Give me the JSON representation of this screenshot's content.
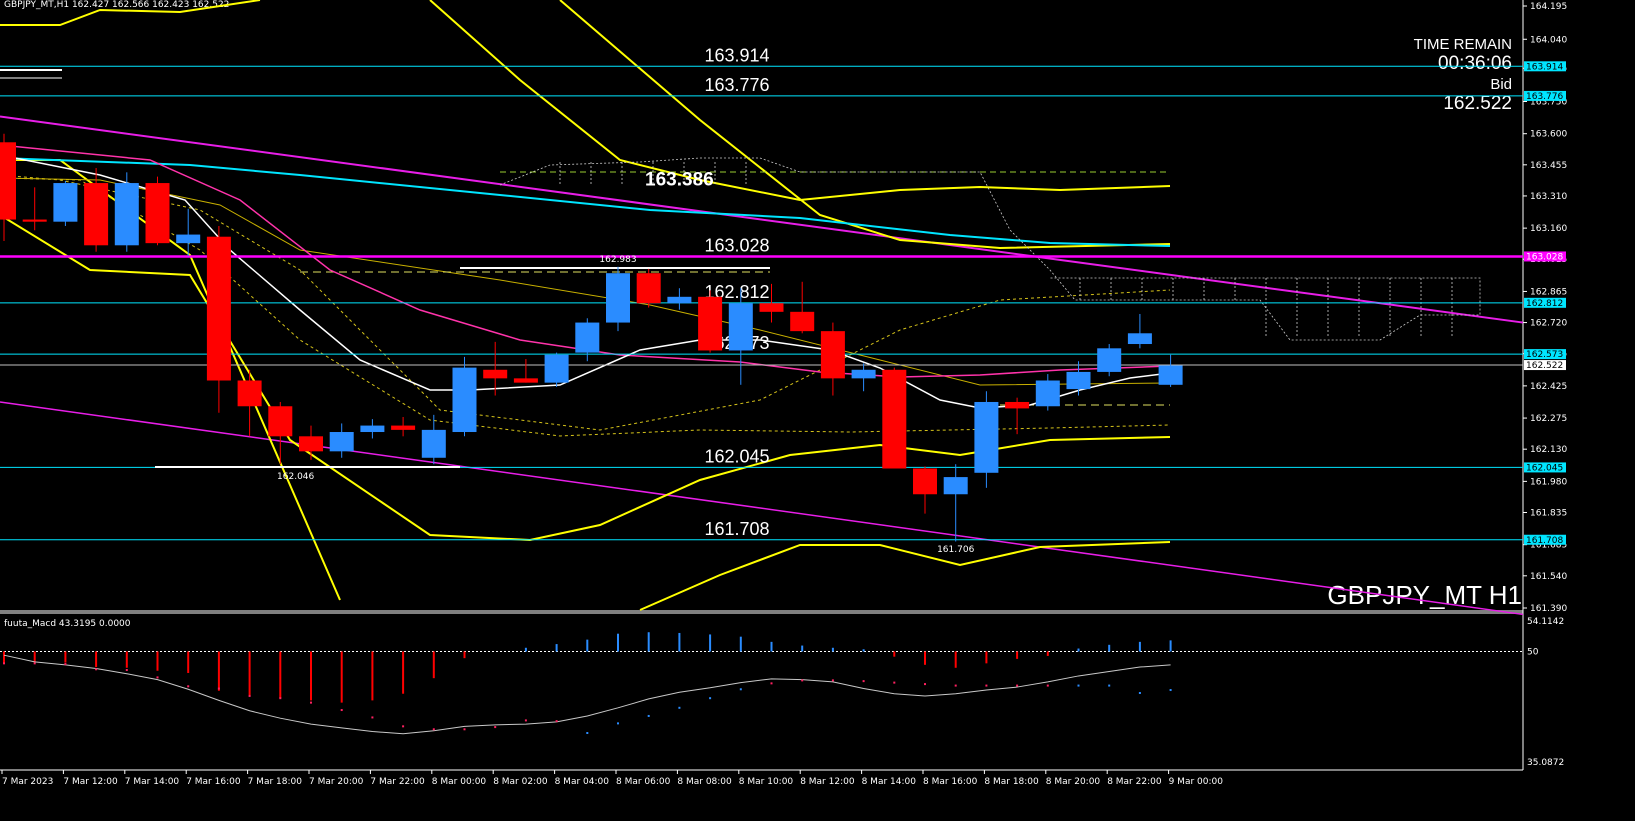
{
  "header": {
    "symbol_info": "GBPJPY_MT,H1",
    "ohlc": "162.427 162.566 162.423 162.522"
  },
  "info_panel": {
    "time_remain_label": "TIME REMAIN",
    "time_remain": "00:36:06",
    "bid_label": "Bid",
    "bid_value": "162.522"
  },
  "watermark": "GBPJPY_MT H1",
  "chart_data": [
    {
      "type": "candlestick",
      "title": "GBPJPY_MT,H1",
      "ylim": [
        161.39,
        164.195
      ],
      "y_ticks": [
        "164.195",
        "164.040",
        "163.905",
        "163.750",
        "163.600",
        "163.455",
        "163.310",
        "163.160",
        "163.015",
        "162.865",
        "162.720",
        "162.575",
        "162.425",
        "162.275",
        "162.130",
        "161.980",
        "161.835",
        "161.685",
        "161.540",
        "161.390"
      ],
      "x_ticks": [
        "7 Mar 2023",
        "7 Mar 12:00",
        "7 Mar 14:00",
        "7 Mar 16:00",
        "7 Mar 18:00",
        "7 Mar 20:00",
        "7 Mar 22:00",
        "8 Mar 00:00",
        "8 Mar 02:00",
        "8 Mar 04:00",
        "8 Mar 06:00",
        "8 Mar 08:00",
        "8 Mar 10:00",
        "8 Mar 12:00",
        "8 Mar 14:00",
        "8 Mar 16:00",
        "8 Mar 18:00",
        "8 Mar 20:00",
        "8 Mar 22:00",
        "9 Mar 00:00"
      ],
      "candles": [
        [
          163.56,
          163.6,
          163.1,
          163.2
        ],
        [
          163.2,
          163.35,
          163.15,
          163.19
        ],
        [
          163.19,
          163.38,
          163.17,
          163.37
        ],
        [
          163.37,
          163.44,
          163.05,
          163.08
        ],
        [
          163.08,
          163.42,
          163.05,
          163.37
        ],
        [
          163.37,
          163.4,
          163.08,
          163.09
        ],
        [
          163.09,
          163.25,
          163.03,
          163.13
        ],
        [
          163.12,
          163.17,
          162.3,
          162.45
        ],
        [
          162.45,
          162.5,
          162.19,
          162.33
        ],
        [
          162.33,
          162.35,
          162.06,
          162.19
        ],
        [
          162.19,
          162.24,
          162.08,
          162.12
        ],
        [
          162.12,
          162.25,
          162.09,
          162.21
        ],
        [
          162.21,
          162.27,
          162.18,
          162.24
        ],
        [
          162.24,
          162.28,
          162.19,
          162.22
        ],
        [
          162.09,
          162.29,
          162.06,
          162.22
        ],
        [
          162.21,
          162.56,
          162.19,
          162.51
        ],
        [
          162.5,
          162.63,
          162.38,
          162.46
        ],
        [
          162.46,
          162.55,
          162.44,
          162.44
        ],
        [
          162.44,
          162.58,
          162.42,
          162.57
        ],
        [
          162.58,
          162.74,
          162.54,
          162.72
        ],
        [
          162.72,
          162.98,
          162.68,
          162.95
        ],
        [
          162.95,
          162.97,
          162.79,
          162.81
        ],
        [
          162.81,
          162.88,
          162.78,
          162.84
        ],
        [
          162.84,
          162.87,
          162.58,
          162.59
        ],
        [
          162.59,
          162.88,
          162.43,
          162.81
        ],
        [
          162.81,
          162.9,
          162.72,
          162.77
        ],
        [
          162.77,
          162.91,
          162.67,
          162.68
        ],
        [
          162.68,
          162.72,
          162.38,
          162.46
        ],
        [
          162.46,
          162.53,
          162.4,
          162.5
        ],
        [
          162.5,
          162.51,
          162.04,
          162.04
        ],
        [
          162.04,
          162.05,
          161.83,
          161.92
        ],
        [
          161.92,
          162.06,
          161.7,
          162.0
        ],
        [
          162.02,
          162.4,
          161.95,
          162.35
        ],
        [
          162.35,
          162.37,
          162.2,
          162.32
        ],
        [
          162.33,
          162.48,
          162.31,
          162.45
        ],
        [
          162.41,
          162.54,
          162.38,
          162.49
        ],
        [
          162.49,
          162.62,
          162.47,
          162.6
        ],
        [
          162.62,
          162.76,
          162.6,
          162.67
        ],
        [
          162.43,
          162.57,
          162.42,
          162.52
        ]
      ],
      "levels": [
        {
          "value": 163.914,
          "label": "163.914",
          "color": "#00e5ff"
        },
        {
          "value": 163.776,
          "label": "163.776",
          "color": "#00e5ff"
        },
        {
          "value": 163.028,
          "label": "163.028",
          "color": "#ff00ff"
        },
        {
          "value": 162.812,
          "label": "162.812",
          "color": "#00e5ff"
        },
        {
          "value": 162.573,
          "label": "162.573",
          "color": "#00e5ff"
        },
        {
          "value": 162.045,
          "label": "162.045",
          "color": "#00e5ff"
        },
        {
          "value": 161.708,
          "label": "161.708",
          "color": "#00e5ff"
        }
      ],
      "bid_line": {
        "value": 162.522,
        "label": "162.522"
      },
      "annotations": [
        {
          "text": "163.386",
          "value": 163.386,
          "bar": 22,
          "bold": true
        },
        {
          "text": "162.983",
          "value": 162.983,
          "bar": 20
        },
        {
          "text": "162.046",
          "value": 162.046,
          "bar": 9.5
        },
        {
          "text": "161.706",
          "value": 161.706,
          "bar": 31
        }
      ],
      "colors": {
        "bull": "#2a8cff",
        "bear": "#ff0000",
        "band": "#ffff00",
        "ma_cyan": "#00e5ff",
        "ma_magenta": "#ff33ff"
      }
    },
    {
      "type": "bar",
      "title": "fuuta_Macd 43.3195 0.0000",
      "ylim": [
        35.0872,
        54.1142
      ],
      "y_ticks": [
        "54.1142",
        "50",
        "35.0872"
      ],
      "baseline": 50,
      "histogram": [
        -1.5,
        -1.5,
        -1.5,
        -2.1,
        -2.2,
        -2.6,
        -2.9,
        -5.3,
        -5.9,
        -6.3,
        -6.6,
        -6.9,
        -6.6,
        -5.7,
        -3.6,
        -0.9,
        0.0,
        0.5,
        1.0,
        1.6,
        2.4,
        2.6,
        2.5,
        2.3,
        2.0,
        1.3,
        0.8,
        0.5,
        0.3,
        -0.7,
        -1.8,
        -2.2,
        -1.6,
        -1.0,
        -0.6,
        0.4,
        0.9,
        1.3,
        1.5
      ],
      "macd_line": [
        49.5,
        48.6,
        48.2,
        47.7,
        47.0,
        46.2,
        44.9,
        43.4,
        42.0,
        41.0,
        40.2,
        39.7,
        39.2,
        38.9,
        39.3,
        39.9,
        40.1,
        40.2,
        40.5,
        41.3,
        42.4,
        43.6,
        44.5,
        45.1,
        45.8,
        46.3,
        46.2,
        45.9,
        45.0,
        44.3,
        44.0,
        44.3,
        44.8,
        45.2,
        45.9,
        46.7,
        47.3,
        47.9,
        48.2
      ],
      "signal_dots": [
        -1.6,
        -1.6,
        -1.7,
        -2.4,
        -2.5,
        -3.5,
        -4.7,
        -5.0,
        -6.0,
        -6.3,
        -6.9,
        -7.9,
        -8.9,
        -10.1,
        -10.5,
        -10.5,
        -10.2,
        -9.3,
        -9.4,
        -11.0,
        -9.7,
        -8.7,
        -7.6,
        -6.3,
        -5.1,
        -4.3,
        -3.9,
        -3.9,
        -4.0,
        -4.2,
        -4.4,
        -4.6,
        -4.6,
        -4.6,
        -4.6,
        -4.6,
        -4.6,
        -5.6,
        -5.2
      ]
    }
  ]
}
